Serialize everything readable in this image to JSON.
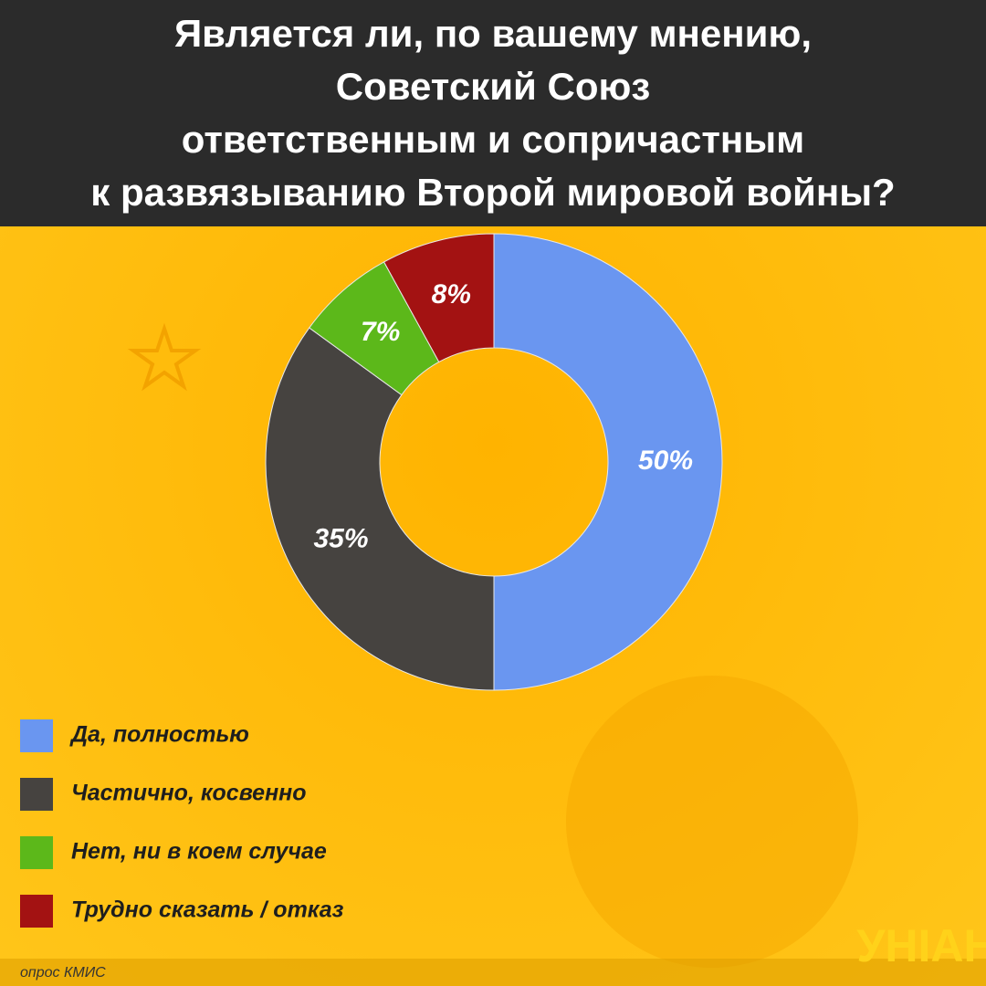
{
  "chart_data": {
    "type": "donut",
    "title": [
      "Является ли, по вашему мнению,",
      "Советский Союз",
      "ответственным и сопричастным",
      "к развязыванию  Второй мировой войны?"
    ],
    "series": [
      {
        "name": "Да, полностью",
        "color": "#6a96f0",
        "values": [
          50
        ],
        "value_labels": [
          "50%"
        ]
      },
      {
        "name": "Частично, косвенно",
        "color": "#464340",
        "values": [
          35
        ],
        "value_labels": [
          "35%"
        ]
      },
      {
        "name": "Нет, ни в коем случае",
        "color": "#5cb81a",
        "values": [
          7
        ],
        "value_labels": [
          "7%"
        ]
      },
      {
        "name": "Трудно сказать / отказ",
        "color": "#a31212",
        "values": [
          8
        ],
        "value_labels": [
          "8%"
        ]
      }
    ],
    "source": "опрос КМИС",
    "logo": "УНІАН"
  }
}
